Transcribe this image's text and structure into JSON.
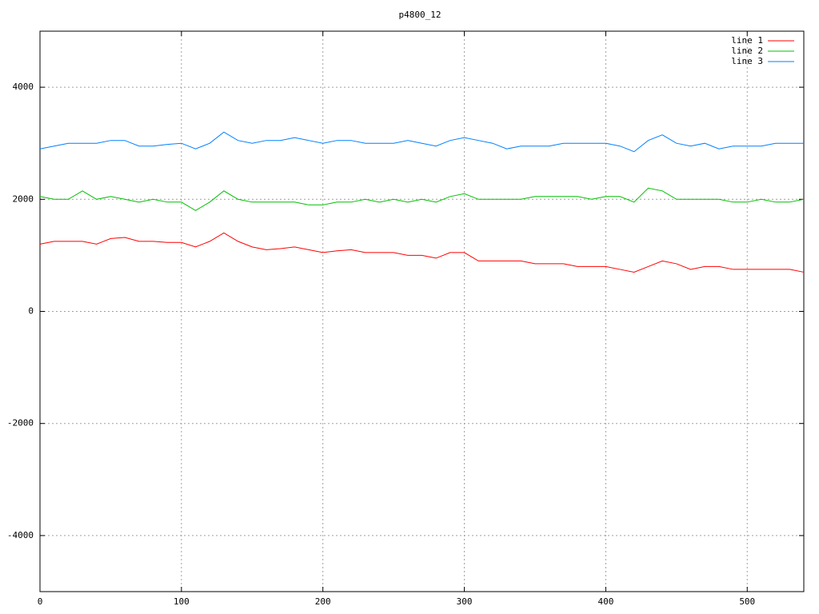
{
  "chart_data": {
    "type": "line",
    "title": "p4800_12",
    "x": [
      0,
      10,
      20,
      30,
      40,
      50,
      60,
      70,
      80,
      90,
      100,
      110,
      120,
      130,
      140,
      150,
      160,
      170,
      180,
      190,
      200,
      210,
      220,
      230,
      240,
      250,
      260,
      270,
      280,
      290,
      300,
      310,
      320,
      330,
      340,
      350,
      360,
      370,
      380,
      390,
      400,
      410,
      420,
      430,
      440,
      450,
      460,
      470,
      480,
      490,
      500,
      510,
      520,
      530,
      540
    ],
    "series": [
      {
        "name": "line 1",
        "color": "#ff0000",
        "values": [
          1200,
          1250,
          1250,
          1250,
          1200,
          1300,
          1320,
          1250,
          1250,
          1230,
          1230,
          1150,
          1250,
          1400,
          1250,
          1150,
          1100,
          1120,
          1150,
          1100,
          1050,
          1080,
          1100,
          1050,
          1050,
          1050,
          1000,
          1000,
          950,
          1050,
          1050,
          900,
          900,
          900,
          900,
          850,
          850,
          850,
          800,
          800,
          800,
          750,
          700,
          800,
          900,
          850,
          750,
          800,
          800,
          750,
          750,
          750,
          750,
          750,
          700
        ]
      },
      {
        "name": "line 2",
        "color": "#00c000",
        "values": [
          2050,
          2000,
          2000,
          2150,
          2000,
          2050,
          2000,
          1950,
          2000,
          1950,
          1950,
          1800,
          1950,
          2150,
          2000,
          1950,
          1950,
          1950,
          1950,
          1900,
          1900,
          1950,
          1950,
          2000,
          1950,
          2000,
          1950,
          2000,
          1950,
          2050,
          2100,
          2000,
          2000,
          2000,
          2000,
          2050,
          2050,
          2050,
          2050,
          2000,
          2050,
          2050,
          1950,
          2200,
          2150,
          2000,
          2000,
          2000,
          2000,
          1950,
          1950,
          2000,
          1950,
          1950,
          2000
        ]
      },
      {
        "name": "line 3",
        "color": "#0080ff",
        "values": [
          2900,
          2950,
          3000,
          3000,
          3000,
          3050,
          3050,
          2950,
          2950,
          2980,
          3000,
          2900,
          3000,
          3200,
          3050,
          3000,
          3050,
          3050,
          3100,
          3050,
          3000,
          3050,
          3050,
          3000,
          3000,
          3000,
          3050,
          3000,
          2950,
          3050,
          3100,
          3050,
          3000,
          2900,
          2950,
          2950,
          2950,
          3000,
          3000,
          3000,
          3000,
          2950,
          2850,
          3050,
          3150,
          3000,
          2950,
          3000,
          2900,
          2950,
          2950,
          2950,
          3000,
          3000,
          3000
        ]
      }
    ],
    "xlim": [
      0,
      540
    ],
    "ylim": [
      -5000,
      5000
    ],
    "xticks": [
      0,
      100,
      200,
      300,
      400,
      500
    ],
    "yticks": [
      -4000,
      -2000,
      0,
      2000,
      4000
    ],
    "grid": true,
    "legend": "top-right"
  }
}
